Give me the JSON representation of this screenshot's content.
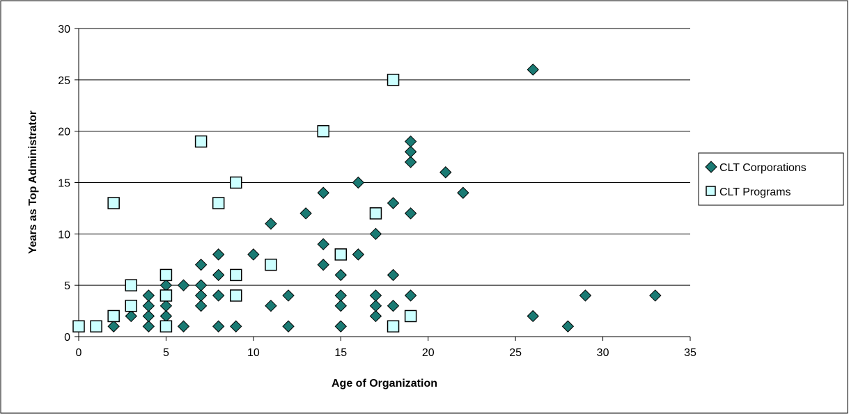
{
  "chart_data": {
    "type": "scatter",
    "title": "",
    "xlabel": "Age of Organization",
    "ylabel": "Years as Top Administrator",
    "xlim": [
      0,
      35
    ],
    "ylim": [
      0,
      30
    ],
    "x_ticks": [
      0,
      5,
      10,
      15,
      20,
      25,
      30,
      35
    ],
    "y_ticks": [
      0,
      5,
      10,
      15,
      20,
      25,
      30
    ],
    "grid": "horizontal",
    "legend_position": "right",
    "series": [
      {
        "name": "CLT Corporations",
        "marker": "diamond",
        "color": "#1a7a73",
        "points": [
          [
            2,
            1
          ],
          [
            3,
            2
          ],
          [
            4,
            1
          ],
          [
            4,
            2
          ],
          [
            4,
            3
          ],
          [
            4,
            4
          ],
          [
            5,
            2
          ],
          [
            5,
            3
          ],
          [
            5,
            5
          ],
          [
            6,
            1
          ],
          [
            6,
            5
          ],
          [
            7,
            3
          ],
          [
            7,
            4
          ],
          [
            7,
            5
          ],
          [
            7,
            7
          ],
          [
            8,
            1
          ],
          [
            8,
            4
          ],
          [
            8,
            6
          ],
          [
            8,
            8
          ],
          [
            9,
            1
          ],
          [
            10,
            8
          ],
          [
            11,
            3
          ],
          [
            11,
            11
          ],
          [
            12,
            1
          ],
          [
            12,
            4
          ],
          [
            13,
            12
          ],
          [
            14,
            7
          ],
          [
            14,
            9
          ],
          [
            14,
            14
          ],
          [
            15,
            1
          ],
          [
            15,
            3
          ],
          [
            15,
            4
          ],
          [
            15,
            6
          ],
          [
            16,
            8
          ],
          [
            16,
            15
          ],
          [
            17,
            2
          ],
          [
            17,
            3
          ],
          [
            17,
            4
          ],
          [
            17,
            10
          ],
          [
            18,
            3
          ],
          [
            18,
            6
          ],
          [
            18,
            13
          ],
          [
            19,
            4
          ],
          [
            19,
            12
          ],
          [
            19,
            17
          ],
          [
            19,
            18
          ],
          [
            19,
            19
          ],
          [
            21,
            16
          ],
          [
            22,
            14
          ],
          [
            26,
            2
          ],
          [
            26,
            26
          ],
          [
            28,
            1
          ],
          [
            29,
            4
          ],
          [
            33,
            4
          ]
        ]
      },
      {
        "name": "CLT Programs",
        "marker": "square",
        "color": "#ccffff",
        "points": [
          [
            0,
            1
          ],
          [
            1,
            1
          ],
          [
            2,
            2
          ],
          [
            2,
            13
          ],
          [
            3,
            3
          ],
          [
            3,
            5
          ],
          [
            5,
            1
          ],
          [
            5,
            4
          ],
          [
            5,
            6
          ],
          [
            7,
            19
          ],
          [
            8,
            13
          ],
          [
            9,
            4
          ],
          [
            9,
            6
          ],
          [
            9,
            15
          ],
          [
            11,
            7
          ],
          [
            14,
            20
          ],
          [
            15,
            8
          ],
          [
            17,
            12
          ],
          [
            18,
            1
          ],
          [
            18,
            25
          ],
          [
            19,
            2
          ]
        ]
      }
    ]
  }
}
